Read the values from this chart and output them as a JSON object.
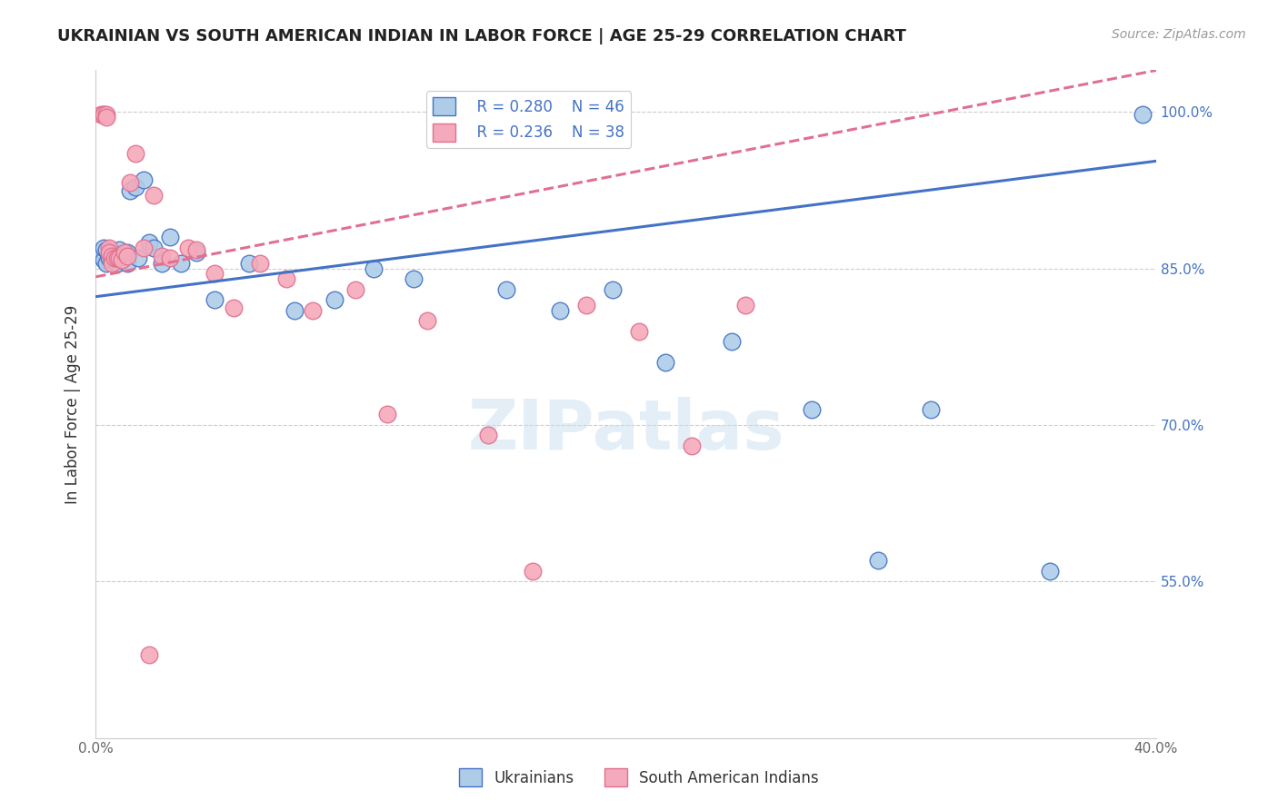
{
  "title": "UKRAINIAN VS SOUTH AMERICAN INDIAN IN LABOR FORCE | AGE 25-29 CORRELATION CHART",
  "source": "Source: ZipAtlas.com",
  "ylabel": "In Labor Force | Age 25-29",
  "xmin": 0.0,
  "xmax": 0.4,
  "ymin": 0.4,
  "ymax": 1.04,
  "yticks": [
    0.55,
    0.7,
    0.85,
    1.0
  ],
  "ytick_labels": [
    "55.0%",
    "70.0%",
    "85.0%",
    "100.0%"
  ],
  "xticks": [
    0.0,
    0.05,
    0.1,
    0.15,
    0.2,
    0.25,
    0.3,
    0.35,
    0.4
  ],
  "xtick_labels": [
    "0.0%",
    "",
    "",
    "",
    "",
    "",
    "",
    "",
    "40.0%"
  ],
  "legend_r1": "R = 0.280",
  "legend_n1": "N = 46",
  "legend_r2": "R = 0.236",
  "legend_n2": "N = 38",
  "blue_color": "#aecce8",
  "pink_color": "#f5aabb",
  "blue_line_color": "#4472c4",
  "pink_line_color": "#e07090",
  "title_color": "#222222",
  "axis_label_color": "#333333",
  "tick_color": "#666666",
  "right_tick_color": "#4472c4",
  "watermark": "ZIPatlas",
  "blue_line_y0": 0.823,
  "blue_line_y1": 0.953,
  "pink_line_y0": 0.842,
  "pink_line_y1": 1.04,
  "blue_x": [
    0.002,
    0.003,
    0.003,
    0.004,
    0.004,
    0.005,
    0.005,
    0.006,
    0.006,
    0.007,
    0.007,
    0.008,
    0.008,
    0.009,
    0.009,
    0.01,
    0.01,
    0.011,
    0.012,
    0.012,
    0.013,
    0.015,
    0.016,
    0.018,
    0.02,
    0.022,
    0.025,
    0.028,
    0.032,
    0.038,
    0.045,
    0.058,
    0.075,
    0.09,
    0.105,
    0.12,
    0.155,
    0.175,
    0.195,
    0.215,
    0.24,
    0.27,
    0.295,
    0.315,
    0.36,
    0.395
  ],
  "blue_y": [
    0.862,
    0.858,
    0.87,
    0.855,
    0.868,
    0.862,
    0.86,
    0.865,
    0.858,
    0.86,
    0.862,
    0.86,
    0.855,
    0.868,
    0.863,
    0.858,
    0.862,
    0.86,
    0.865,
    0.855,
    0.925,
    0.928,
    0.86,
    0.935,
    0.875,
    0.87,
    0.855,
    0.88,
    0.855,
    0.865,
    0.82,
    0.855,
    0.81,
    0.82,
    0.85,
    0.84,
    0.83,
    0.81,
    0.83,
    0.76,
    0.78,
    0.715,
    0.57,
    0.715,
    0.56,
    0.998
  ],
  "pink_x": [
    0.002,
    0.003,
    0.003,
    0.004,
    0.004,
    0.005,
    0.005,
    0.006,
    0.006,
    0.007,
    0.008,
    0.009,
    0.01,
    0.011,
    0.012,
    0.013,
    0.015,
    0.018,
    0.022,
    0.025,
    0.028,
    0.035,
    0.038,
    0.045,
    0.052,
    0.062,
    0.072,
    0.082,
    0.098,
    0.11,
    0.125,
    0.148,
    0.165,
    0.185,
    0.205,
    0.225,
    0.245,
    0.02
  ],
  "pink_y": [
    0.998,
    0.998,
    0.998,
    0.998,
    0.995,
    0.87,
    0.865,
    0.862,
    0.855,
    0.86,
    0.86,
    0.86,
    0.858,
    0.865,
    0.862,
    0.932,
    0.96,
    0.87,
    0.92,
    0.862,
    0.86,
    0.87,
    0.868,
    0.845,
    0.812,
    0.855,
    0.84,
    0.81,
    0.83,
    0.71,
    0.8,
    0.69,
    0.56,
    0.815,
    0.79,
    0.68,
    0.815,
    0.48
  ]
}
